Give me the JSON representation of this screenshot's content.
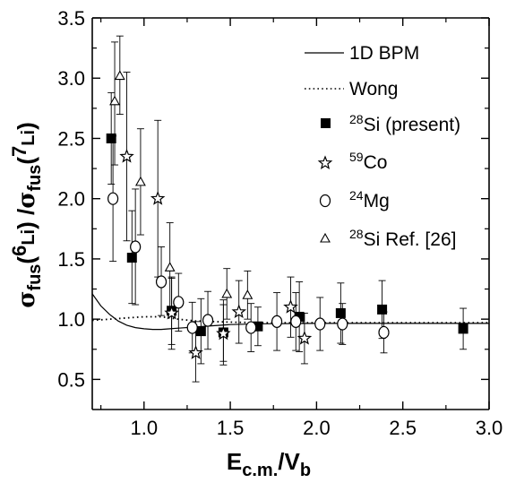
{
  "chart_data": {
    "type": "scatter",
    "title": "",
    "xlabel": {
      "main": "E",
      "sub1": "c.m.",
      "slash": "/V",
      "sub2": "b"
    },
    "ylabel": {
      "sigma": "σ",
      "fus": "fus",
      "open1": "(",
      "sup6": "6",
      "li1": "Li",
      "mid": ") /",
      "sigma2": "σ",
      "fus2": "fus",
      "open2": "(",
      "sup7": "7",
      "li2": "Li",
      "close": ")"
    },
    "xlim": [
      0.7,
      3.0
    ],
    "ylim": [
      0.25,
      3.5
    ],
    "x_ticks": [
      1.0,
      1.5,
      2.0,
      2.5,
      3.0
    ],
    "x_tick_labels": [
      "1.0",
      "1.5",
      "2.0",
      "2.5",
      "3.0"
    ],
    "y_ticks": [
      0.5,
      1.0,
      1.5,
      2.0,
      2.5,
      3.0,
      3.5
    ],
    "y_tick_labels": [
      "0.5",
      "1.0",
      "1.5",
      "2.0",
      "2.5",
      "3.0",
      "3.5"
    ],
    "grid": false,
    "legend_position": "top-right",
    "lines": [
      {
        "name": "1D BPM",
        "style": "solid",
        "x": [
          0.7,
          0.75,
          0.8,
          0.85,
          0.9,
          0.95,
          1.0,
          1.05,
          1.1,
          1.15,
          1.2,
          1.3,
          1.4,
          1.5,
          1.7,
          2.0,
          2.5,
          3.0
        ],
        "y": [
          1.21,
          1.11,
          1.04,
          0.985,
          0.95,
          0.93,
          0.92,
          0.915,
          0.915,
          0.92,
          0.925,
          0.935,
          0.945,
          0.955,
          0.962,
          0.965,
          0.965,
          0.965
        ]
      },
      {
        "name": "Wong",
        "style": "dotted",
        "x": [
          0.7,
          0.8,
          0.9,
          1.0,
          1.1,
          1.2,
          1.3,
          1.5,
          1.7,
          2.0,
          2.5,
          3.0
        ],
        "y": [
          0.99,
          1.0,
          1.01,
          1.02,
          1.02,
          1.0,
          0.985,
          0.975,
          0.97,
          0.97,
          0.97,
          0.97
        ]
      }
    ],
    "series": [
      {
        "name": "28Si (present)",
        "legend": {
          "sup": "28",
          "text": "Si (present)"
        },
        "marker": "filled-square",
        "points": [
          {
            "x": 0.81,
            "y": 2.5,
            "lo": 2.12,
            "hi": 2.88
          },
          {
            "x": 0.93,
            "y": 1.51,
            "lo": 1.13,
            "hi": 1.9
          },
          {
            "x": 1.16,
            "y": 1.07,
            "lo": 0.79,
            "hi": 1.34
          },
          {
            "x": 1.33,
            "y": 0.9,
            "lo": 0.63,
            "hi": 1.17
          },
          {
            "x": 1.46,
            "y": 0.89,
            "lo": 0.62,
            "hi": 1.16
          },
          {
            "x": 1.66,
            "y": 0.94,
            "lo": 0.78,
            "hi": 1.1
          },
          {
            "x": 1.9,
            "y": 1.02,
            "lo": 0.73,
            "hi": 1.31
          },
          {
            "x": 2.14,
            "y": 1.05,
            "lo": 0.8,
            "hi": 1.3
          },
          {
            "x": 2.38,
            "y": 1.08,
            "lo": 0.84,
            "hi": 1.32
          },
          {
            "x": 2.85,
            "y": 0.92,
            "lo": 0.75,
            "hi": 1.09
          }
        ]
      },
      {
        "name": "59Co",
        "legend": {
          "sup": "59",
          "text": "Co"
        },
        "marker": "open-star",
        "points": [
          {
            "x": 0.9,
            "y": 2.35,
            "lo": 1.65,
            "hi": 3.05
          },
          {
            "x": 1.08,
            "y": 2.0,
            "lo": 1.35,
            "hi": 2.65
          },
          {
            "x": 1.16,
            "y": 1.05,
            "lo": 0.75,
            "hi": 1.35
          },
          {
            "x": 1.3,
            "y": 0.72,
            "lo": 0.48,
            "hi": 0.98
          },
          {
            "x": 1.46,
            "y": 0.88,
            "lo": 0.65,
            "hi": 1.12
          },
          {
            "x": 1.55,
            "y": 1.06,
            "lo": 0.8,
            "hi": 1.32
          },
          {
            "x": 1.85,
            "y": 1.1,
            "lo": 0.85,
            "hi": 1.35
          },
          {
            "x": 1.93,
            "y": 0.84,
            "lo": 0.63,
            "hi": 1.05
          }
        ]
      },
      {
        "name": "24Mg",
        "legend": {
          "sup": "24",
          "text": "Mg"
        },
        "marker": "open-circle",
        "points": [
          {
            "x": 0.82,
            "y": 2.0,
            "lo": 1.48,
            "hi": 2.52
          },
          {
            "x": 0.95,
            "y": 1.6,
            "lo": 1.12,
            "hi": 2.08
          },
          {
            "x": 1.1,
            "y": 1.31,
            "lo": 1.03,
            "hi": 1.6
          },
          {
            "x": 1.2,
            "y": 1.14,
            "lo": 0.9,
            "hi": 1.38
          },
          {
            "x": 1.28,
            "y": 0.93,
            "lo": 0.72,
            "hi": 1.14
          },
          {
            "x": 1.37,
            "y": 0.99,
            "lo": 0.75,
            "hi": 1.23
          },
          {
            "x": 1.62,
            "y": 0.93,
            "lo": 0.73,
            "hi": 1.13
          },
          {
            "x": 1.77,
            "y": 0.98,
            "lo": 0.74,
            "hi": 1.22
          },
          {
            "x": 1.88,
            "y": 0.98,
            "lo": 0.74,
            "hi": 1.22
          },
          {
            "x": 2.02,
            "y": 0.96,
            "lo": 0.74,
            "hi": 1.18
          },
          {
            "x": 2.15,
            "y": 0.96,
            "lo": 0.79,
            "hi": 1.13
          },
          {
            "x": 2.39,
            "y": 0.89,
            "lo": 0.72,
            "hi": 1.06
          }
        ]
      },
      {
        "name": "28Si Ref. [26]",
        "legend": {
          "sup": "28",
          "text": "Si Ref. [26]"
        },
        "marker": "open-triangle",
        "points": [
          {
            "x": 0.83,
            "y": 2.81,
            "lo": 2.28,
            "hi": 3.3
          },
          {
            "x": 0.86,
            "y": 3.02,
            "lo": 2.7,
            "hi": 3.35
          },
          {
            "x": 0.98,
            "y": 2.14,
            "lo": 1.7,
            "hi": 2.58
          },
          {
            "x": 1.15,
            "y": 1.43,
            "lo": 1.05,
            "hi": 1.8
          },
          {
            "x": 1.48,
            "y": 1.21,
            "lo": 1.0,
            "hi": 1.42
          },
          {
            "x": 1.6,
            "y": 1.2,
            "lo": 1.0,
            "hi": 1.4
          }
        ]
      }
    ]
  }
}
